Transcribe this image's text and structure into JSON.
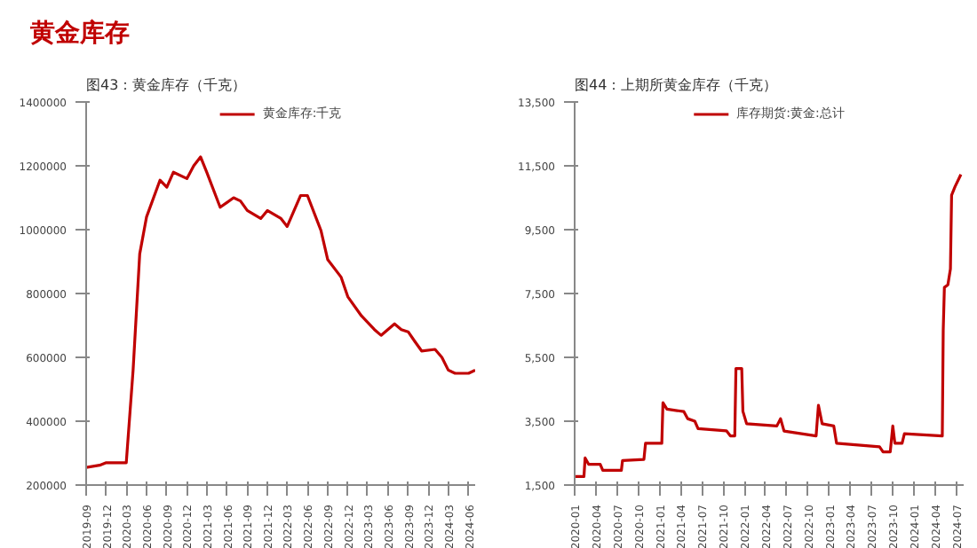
{
  "chart_data": [
    {
      "type": "line",
      "title": "黄金库存",
      "subtitle": "图43：黄金库存（千克）",
      "legend": "top",
      "x": [
        "2019-09",
        "2019-11",
        "2019-12",
        "2020-02",
        "2020-03",
        "2020-04",
        "2020-05",
        "2020-06",
        "2020-08",
        "2020-09",
        "2020-10",
        "2020-12",
        "2021-01",
        "2021-02",
        "2021-03",
        "2021-05",
        "2021-07",
        "2021-08",
        "2021-09",
        "2021-11",
        "2021-12",
        "2022-02",
        "2022-03",
        "2022-05",
        "2022-06",
        "2022-08",
        "2022-09",
        "2022-11",
        "2022-12",
        "2023-02",
        "2023-04",
        "2023-05",
        "2023-07",
        "2023-08",
        "2023-09",
        "2023-10",
        "2023-11",
        "2024-01",
        "2024-02",
        "2024-03",
        "2024-04",
        "2024-06",
        "2024-07"
      ],
      "series": [
        {
          "name": "黄金库存:千克",
          "color": "#c00000",
          "values": [
            255000,
            262000,
            270000,
            270000,
            270000,
            560000,
            924000,
            1040000,
            1155000,
            1133000,
            1180000,
            1160000,
            1200000,
            1228000,
            1180000,
            1070000,
            1100000,
            1090000,
            1060000,
            1035000,
            1060000,
            1035000,
            1010000,
            1107000,
            1107000,
            998000,
            906000,
            851000,
            790000,
            730000,
            687000,
            669000,
            705000,
            687000,
            680000,
            650000,
            620000,
            625000,
            600000,
            560000,
            550000,
            550000,
            560000
          ]
        }
      ],
      "xlim": [
        "2019-09",
        "2024-07"
      ],
      "xticks": [
        "2019-09",
        "2019-12",
        "2020-03",
        "2020-06",
        "2020-09",
        "2020-12",
        "2021-03",
        "2021-06",
        "2021-09",
        "2021-12",
        "2022-03",
        "2022-06",
        "2022-09",
        "2022-12",
        "2023-03",
        "2023-06",
        "2023-09",
        "2023-12",
        "2024-03",
        "2024-06"
      ],
      "ylim": [
        200000,
        1400000
      ],
      "yticks": [
        200000,
        400000,
        600000,
        800000,
        1000000,
        1200000,
        1400000
      ]
    },
    {
      "type": "line",
      "subtitle": "图44：上期所黄金库存（千克）",
      "legend": "top",
      "x": [
        "2020-01-01",
        "2020-02-10",
        "2020-02-15",
        "2020-03-01",
        "2020-04-20",
        "2020-05-01",
        "2020-07-20",
        "2020-07-25",
        "2020-10-25",
        "2020-11-01",
        "2021-01-10",
        "2021-01-15",
        "2021-02-01",
        "2021-04-15",
        "2021-05-01",
        "2021-06-01",
        "2021-06-15",
        "2021-10-15",
        "2021-11-01",
        "2021-11-20",
        "2021-11-25",
        "2021-12-20",
        "2021-12-25",
        "2022-01-10",
        "2022-05-20",
        "2022-06-05",
        "2022-06-20",
        "2022-11-05",
        "2022-11-15",
        "2022-12-01",
        "2023-01-20",
        "2023-02-01",
        "2023-08-05",
        "2023-08-20",
        "2023-09-20",
        "2023-10-01",
        "2023-10-10",
        "2023-11-10",
        "2023-11-20",
        "2024-05-01",
        "2024-05-05",
        "2024-05-10",
        "2024-05-25",
        "2024-06-05",
        "2024-06-10",
        "2024-06-25",
        "2024-07-20"
      ],
      "series": [
        {
          "name": "库存期货:黄金:总计",
          "color": "#c00000",
          "values": [
            1770,
            1770,
            2350,
            2150,
            2150,
            1960,
            1960,
            2270,
            2300,
            2810,
            2810,
            4080,
            3880,
            3800,
            3580,
            3500,
            3270,
            3200,
            3040,
            3040,
            5150,
            5150,
            3810,
            3420,
            3350,
            3580,
            3190,
            3040,
            4000,
            3420,
            3350,
            2810,
            2700,
            2540,
            2540,
            3350,
            2810,
            2810,
            3110,
            3040,
            6350,
            7690,
            7770,
            8270,
            10580,
            10850,
            11230
          ]
        }
      ],
      "xlim": [
        "2020-01-01",
        "2024-08-01"
      ],
      "xticks": [
        "2020-01",
        "2020-04",
        "2020-07",
        "2020-10",
        "2021-01",
        "2021-04",
        "2021-07",
        "2021-10",
        "2022-01",
        "2022-04",
        "2022-07",
        "2022-10",
        "2023-01",
        "2023-04",
        "2023-07",
        "2023-10",
        "2024-01",
        "2024-04",
        "2024-07"
      ],
      "ylim": [
        1500,
        13500
      ],
      "yticks": [
        {
          "value": 1500,
          "label": "1,500"
        },
        {
          "value": 3500,
          "label": "3,500"
        },
        {
          "value": 5500,
          "label": "5,500"
        },
        {
          "value": 7500,
          "label": "7,500"
        },
        {
          "value": 9500,
          "label": "9,500"
        },
        {
          "value": 11500,
          "label": "11,500"
        },
        {
          "value": 13500,
          "label": "13,500"
        }
      ]
    }
  ]
}
